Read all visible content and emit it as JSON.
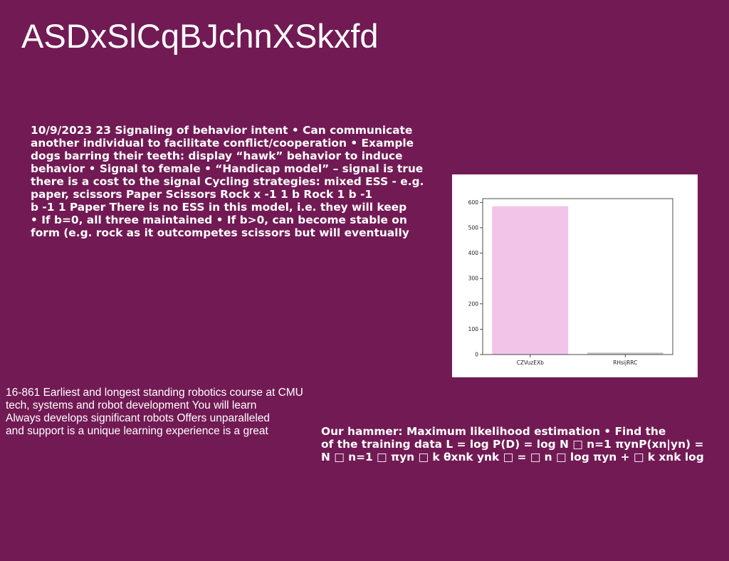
{
  "title": "ASDxSlCqBJchnXSkxfd",
  "text_block_a": [
    "10/9/2023 23 Signaling of behavior intent • Can communicate",
    "another individual to facilitate conflict/cooperation • Example",
    "dogs barring their teeth: display “hawk” behavior to induce",
    "behavior • Signal to female • “Handicap model” – signal is true",
    "there is a cost to the signal Cycling strategies: mixed ESS - e.g.",
    "paper, scissors Paper Scissors Rock x -1 1 b Rock 1 b -1",
    "b -1 1 Paper There is no ESS in this model, i.e. they will keep",
    "• If b=0, all three maintained • If b>0, can become stable on",
    "form (e.g. rock as it outcompetes scissors but will eventually"
  ],
  "text_block_b": [
    "16-861 Earliest and longest standing robotics course at CMU",
    "tech, systems and robot development You will learn",
    "Always develops significant robots Offers unparalleled",
    "and support is a unique learning experience is a great"
  ],
  "text_block_c": [
    "Our hammer: Maximum likelihood estimation • Find the",
    "of the training data L = log P(D) = log N □ n=1 πynP(xn|yn) =",
    "N □ n=1 □ πyn □ k θxnk ynk □ = □ n □ log πyn + □ k xnk log"
  ],
  "chart_data": {
    "type": "bar",
    "categories": [
      "CZVuzEXb",
      "RHsijRRC"
    ],
    "values": [
      585,
      8
    ],
    "ylim": [
      0,
      615
    ],
    "yticks": [
      0,
      100,
      200,
      300,
      400,
      500,
      600
    ],
    "colors": [
      "#f2c4e8",
      "#c8c8c8"
    ],
    "grid": false,
    "title": "",
    "xlabel": "",
    "ylabel": ""
  }
}
